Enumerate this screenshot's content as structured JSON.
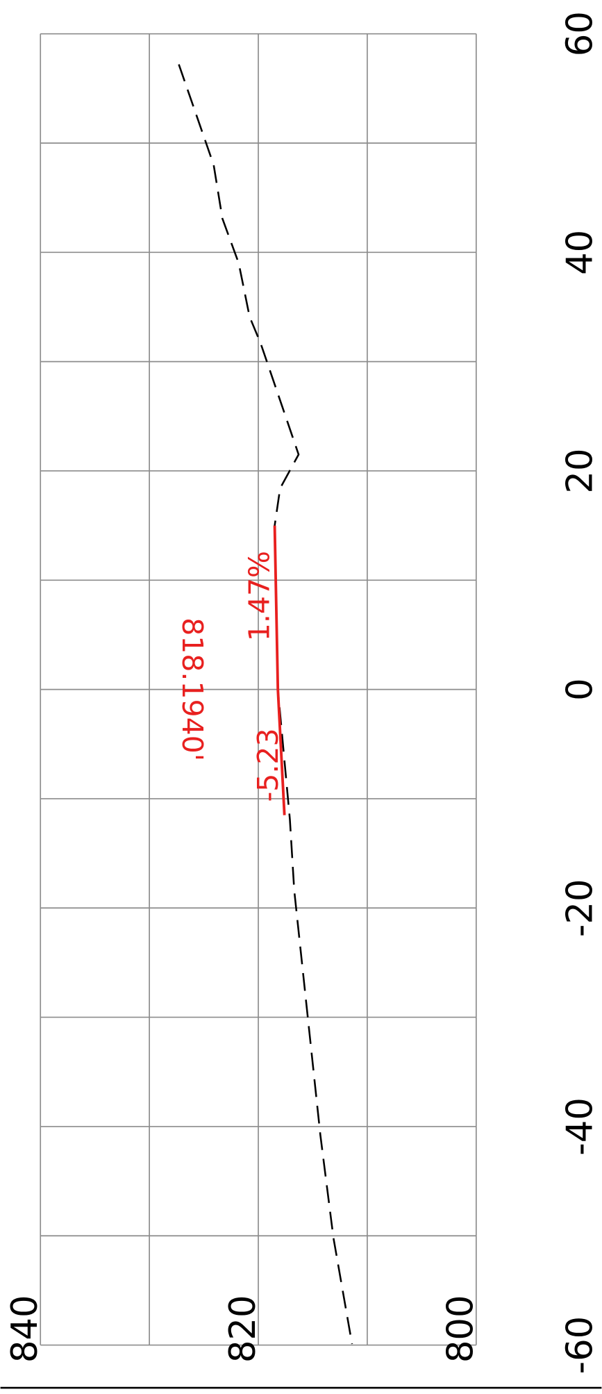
{
  "chart_data": {
    "type": "line",
    "xlim": [
      -60,
      60
    ],
    "xticks": [
      -60,
      -40,
      -20,
      0,
      20,
      40,
      60
    ],
    "ylim": [
      800,
      840
    ],
    "yticks": [
      800,
      820,
      840
    ],
    "grid": true,
    "series": [
      {
        "color": "#000000",
        "dash": true,
        "x": [
          57.2,
          48,
          43.1,
          39,
          34.1,
          31.7,
          21.5,
          18.4,
          15,
          0,
          -11.9,
          -18.4,
          -40.8,
          -50.2,
          -59.9
        ],
        "values": [
          827.3,
          824.1,
          823.3,
          821.8,
          820.8,
          819.8,
          816.3,
          818,
          818.5,
          818.2,
          817.1,
          816.7,
          814.3,
          813.1,
          811.4
        ]
      },
      {
        "color": "#e8201f",
        "dash": false,
        "x": [
          -11.5,
          0,
          15
        ],
        "values": [
          817.6,
          818.2,
          818.5
        ]
      }
    ],
    "annotations": [
      "1.47%",
      "-5.23",
      "818.1940'"
    ]
  }
}
